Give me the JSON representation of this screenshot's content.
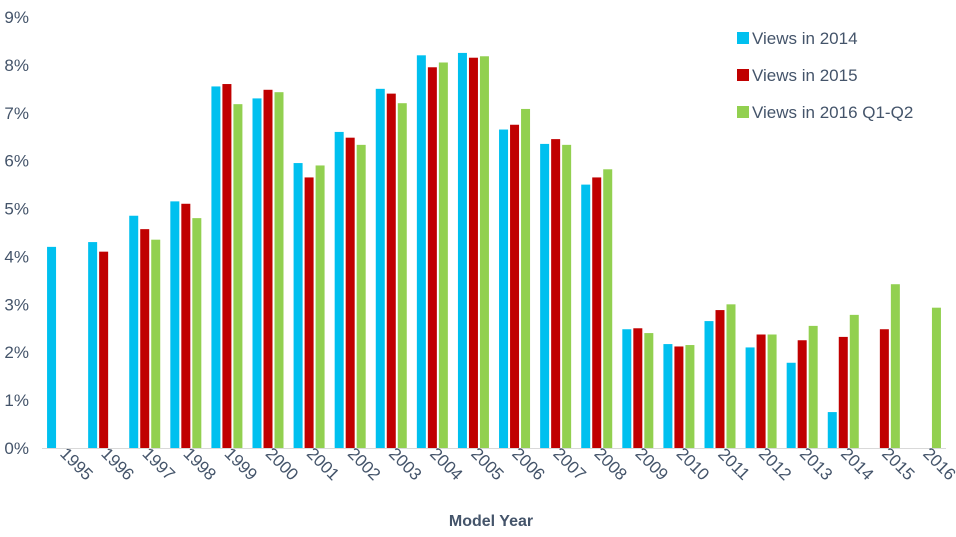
{
  "chart_data": {
    "type": "bar",
    "title": "",
    "xlabel": "Model Year",
    "ylabel": "",
    "ylim": [
      0,
      9
    ],
    "yticks": [
      "0%",
      "1%",
      "2%",
      "3%",
      "4%",
      "5%",
      "6%",
      "7%",
      "8%",
      "9%"
    ],
    "grid": false,
    "legend": "top-right",
    "categories": [
      "1995",
      "1996",
      "1997",
      "1998",
      "1999",
      "2000",
      "2001",
      "2002",
      "2003",
      "2004",
      "2005",
      "2006",
      "2007",
      "2008",
      "2009",
      "2010",
      "2011",
      "2012",
      "2013",
      "2014",
      "2015",
      "2016"
    ],
    "series": [
      {
        "name": "Views in 2014",
        "color": "#00c0ef",
        "values": [
          4.2,
          4.3,
          4.85,
          5.15,
          7.55,
          7.3,
          5.95,
          6.6,
          7.5,
          8.2,
          8.25,
          6.65,
          6.35,
          5.5,
          2.48,
          2.17,
          2.65,
          2.1,
          1.78,
          0.75,
          null,
          null
        ]
      },
      {
        "name": "Views in 2015",
        "color": "#c00000",
        "values": [
          null,
          4.1,
          4.57,
          5.1,
          7.6,
          7.48,
          5.65,
          6.48,
          7.4,
          7.95,
          8.15,
          6.75,
          6.45,
          5.65,
          2.5,
          2.12,
          2.88,
          2.37,
          2.25,
          2.32,
          2.48,
          null
        ]
      },
      {
        "name": "Views in 2016 Q1-Q2",
        "color": "#92d050",
        "values": [
          null,
          null,
          4.35,
          4.8,
          7.18,
          7.43,
          5.9,
          6.33,
          7.2,
          8.05,
          8.18,
          7.08,
          6.33,
          5.82,
          2.4,
          2.15,
          3.0,
          2.37,
          2.55,
          2.78,
          3.42,
          2.93
        ]
      }
    ]
  }
}
